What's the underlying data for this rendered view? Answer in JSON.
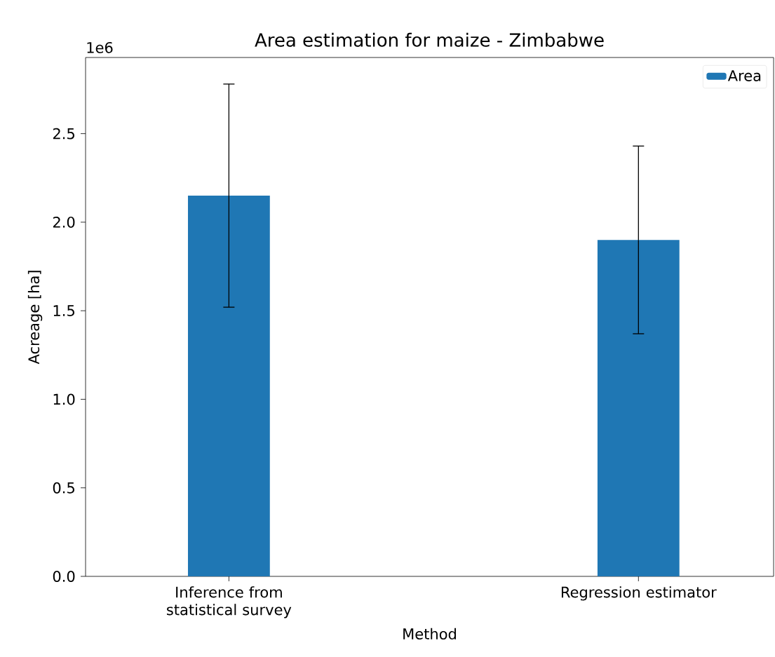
{
  "chart_data": {
    "type": "bar",
    "title": "Area estimation for maize - Zimbabwe",
    "xlabel": "Method",
    "ylabel": "Acreage [ha]",
    "categories": [
      "Inference from statistical survey",
      "Regression estimator"
    ],
    "series": [
      {
        "name": "Area",
        "color": "#1f77b4",
        "values": [
          2.15,
          1.9
        ],
        "errors": [
          0.63,
          0.53
        ]
      }
    ],
    "ylim": [
      0,
      2.93
    ],
    "yticks": [
      {
        "value": 0,
        "label": "0.0"
      },
      0.5,
      {
        "value": 1,
        "label": "1.0"
      },
      1.5,
      {
        "value": 2,
        "label": "2.0"
      },
      2.5
    ],
    "annotations": [
      "1e6"
    ],
    "legend": "top right",
    "grid": false
  }
}
